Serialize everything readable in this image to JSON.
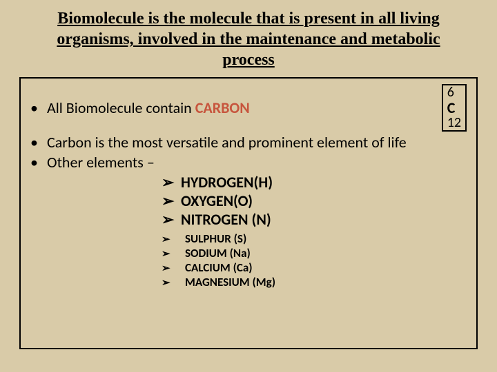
{
  "colors": {
    "background": "#d9cba8",
    "text": "#000000",
    "carbon_highlight": "#c7553d",
    "border": "#000000"
  },
  "title": "Biomolecule is the molecule that is present in all living organisms, involved in the maintenance and metabolic process",
  "bullets": {
    "b1_prefix": "All Biomolecule contain ",
    "b1_carbon": "CARBON",
    "b2": "Carbon is the most versatile and prominent element of life",
    "b3": "Other elements –"
  },
  "carbon_symbol": {
    "atomic_number": "6",
    "symbol": "C",
    "mass": "12"
  },
  "major_elements": [
    "HYDROGEN(H)",
    "OXYGEN(O)",
    "NITROGEN (N)"
  ],
  "minor_elements": [
    "SULPHUR (S)",
    "SODIUM (Na)",
    "CALCIUM (Ca)",
    "MAGNESIUM (Mg)"
  ],
  "glyphs": {
    "bullet": "•",
    "arrow": "➢"
  },
  "typography": {
    "title_fontsize": 24,
    "body_fontsize": 22,
    "minor_fontsize": 17
  }
}
